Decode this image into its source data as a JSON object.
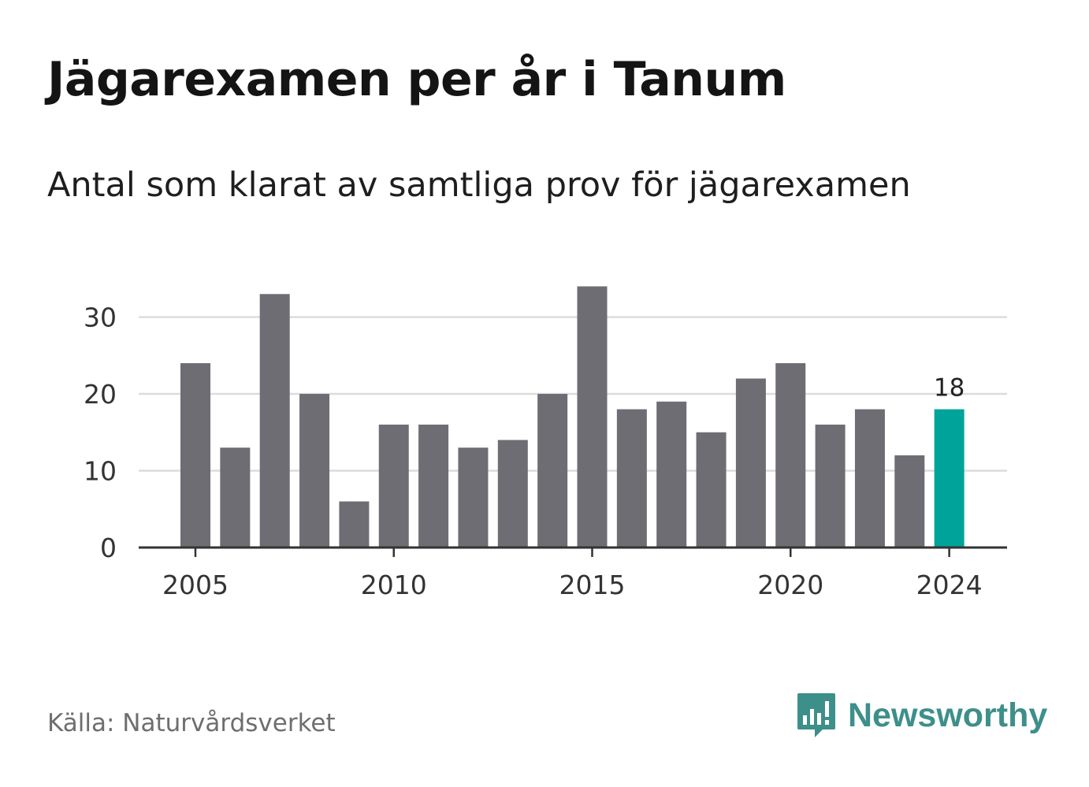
{
  "header": {
    "title": "Jägarexamen per år i Tanum",
    "subtitle": "Antal som klarat av samtliga prov för jägarexamen"
  },
  "footer": {
    "source": "Källa: Naturvårdsverket",
    "brand": "Newsworthy"
  },
  "colors": {
    "bar": "#6d6d73",
    "highlight": "#00a39a",
    "grid": "#dcdcdc",
    "axis": "#333333",
    "brand": "#3d8f8a"
  },
  "icons": {
    "brand_logo": "chart-bubble-icon"
  },
  "chart_data": {
    "type": "bar",
    "x": [
      2005,
      2006,
      2007,
      2008,
      2009,
      2010,
      2011,
      2012,
      2013,
      2014,
      2015,
      2016,
      2017,
      2018,
      2019,
      2020,
      2021,
      2022,
      2023,
      2024
    ],
    "values": [
      24,
      13,
      33,
      20,
      6,
      16,
      16,
      13,
      14,
      20,
      34,
      18,
      19,
      15,
      22,
      24,
      16,
      18,
      12,
      18
    ],
    "highlight": {
      "x": 2024,
      "value": 18,
      "label": "18"
    },
    "xticks": [
      2005,
      2010,
      2015,
      2020,
      2024
    ],
    "xtick_labels": [
      "2005",
      "2010",
      "2015",
      "2020",
      "2024"
    ],
    "yticks": [
      0,
      10,
      20,
      30
    ],
    "ytick_labels": [
      "0",
      "10",
      "20",
      "30"
    ],
    "ylim": [
      0,
      35
    ],
    "grid": true
  }
}
